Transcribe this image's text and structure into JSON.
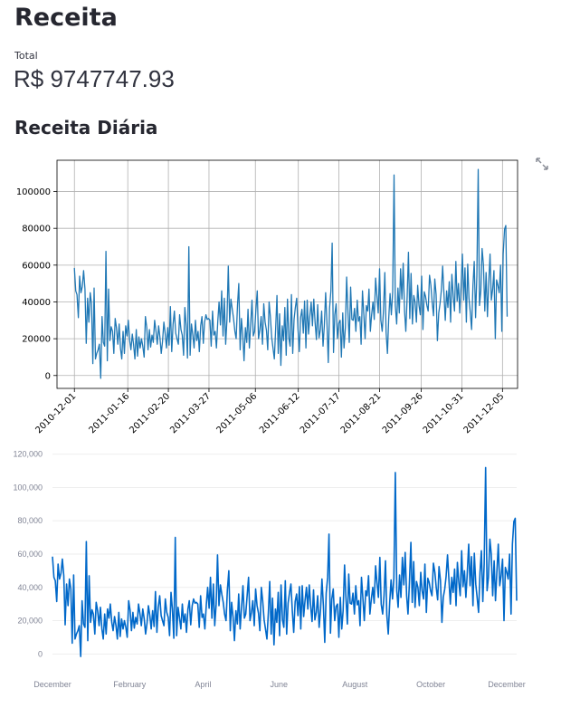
{
  "page": {
    "title": "Receita",
    "metric_label": "Total",
    "metric_value": "R$ 9747747.93",
    "section_title": "Receita Diária",
    "fullscreen_icon": "expand-arrows-icon"
  },
  "colors": {
    "mpl_line": "#1f77b4",
    "plotly_line": "#0068c9",
    "grid": "#b0b0b0",
    "plotly_grid": "#eeeeee"
  },
  "chart_data": [
    {
      "type": "line",
      "title": "",
      "xlabel": "",
      "ylabel": "",
      "x_tick_labels": [
        "2010-12-01",
        "2011-01-16",
        "2011-02-20",
        "2011-03-27",
        "2011-05-06",
        "2011-06-12",
        "2011-07-17",
        "2011-08-21",
        "2011-09-26",
        "2011-10-31",
        "2011-12-05"
      ],
      "y_ticks": [
        0,
        20000,
        40000,
        60000,
        80000,
        100000
      ],
      "y_tick_labels": [
        "0",
        "20000",
        "40000",
        "60000",
        "80000",
        "100000"
      ],
      "ylim": [
        -7000,
        117000
      ],
      "grid": true,
      "x_start": "2010-12-01",
      "x_end": "2011-12-09",
      "series": [
        {
          "values": [
            58500,
            46000,
            44000,
            31500,
            54000,
            45000,
            48500,
            57000,
            47000,
            17500,
            42000,
            29000,
            45000,
            39000,
            6500,
            47500,
            9000,
            12000,
            14000,
            17000,
            -1500,
            32000,
            18000,
            16000,
            67500,
            8000,
            47000,
            19000,
            26500,
            24000,
            12000,
            31000,
            26000,
            17000,
            28000,
            15000,
            9000,
            24000,
            12000,
            27000,
            21500,
            30000,
            19000,
            14000,
            22500,
            17000,
            9000,
            25000,
            10500,
            21000,
            15000,
            20000,
            16000,
            10000,
            32000,
            26000,
            14000,
            25000,
            15500,
            22000,
            18000,
            30000,
            24000,
            17000,
            27000,
            21000,
            12000,
            18500,
            29000,
            23000,
            15000,
            26000,
            16500,
            37500,
            13000,
            28000,
            35000,
            23000,
            20000,
            17000,
            33000,
            25000,
            22000,
            11000,
            37000,
            27000,
            9500,
            70000,
            11000,
            28000,
            22000,
            15000,
            30000,
            19000,
            24000,
            13000,
            27000,
            32000,
            17500,
            29000,
            33000,
            30500,
            31000,
            30000,
            16000,
            35000,
            22000,
            24000,
            15000,
            29500,
            40000,
            27500,
            46000,
            21500,
            42000,
            17000,
            30000,
            59500,
            29000,
            41500,
            36000,
            31000,
            24000,
            20000,
            38500,
            50000,
            14000,
            31000,
            22000,
            8000,
            26000,
            18000,
            36000,
            15000,
            27500,
            41000,
            21500,
            24000,
            35500,
            46000,
            20000,
            25000,
            32000,
            17000,
            39000,
            29000,
            24500,
            14000,
            40000,
            32000,
            20500,
            15000,
            9000,
            25000,
            43500,
            12000,
            33500,
            5500,
            27000,
            19000,
            37000,
            11000,
            41500,
            20500,
            16000,
            44000,
            12000,
            30500,
            37000,
            42000,
            25500,
            13000,
            31500,
            36000,
            23000,
            40500,
            15000,
            41000,
            22500,
            32000,
            40000,
            27000,
            41500,
            29000,
            19500,
            38500,
            20500,
            25000,
            35000,
            16000,
            27000,
            45000,
            29000,
            7000,
            36500,
            46000,
            72000,
            12500,
            33000,
            39000,
            20000,
            28500,
            30000,
            10000,
            34000,
            15000,
            26000,
            53500,
            34000,
            18000,
            48000,
            30500,
            30000,
            36500,
            24000,
            41000,
            29500,
            32000,
            17000,
            46000,
            34000,
            20000,
            38000,
            35000,
            47000,
            24000,
            33000,
            40000,
            30500,
            53000,
            43000,
            34000,
            58000,
            30000,
            24000,
            35000,
            56000,
            23500,
            12000,
            31000,
            44500,
            33000,
            45500,
            109000,
            38000,
            28000,
            47500,
            34000,
            58000,
            41500,
            61000,
            35000,
            24000,
            43000,
            67000,
            31000,
            55500,
            28000,
            43500,
            40000,
            29000,
            49000,
            38000,
            33000,
            54000,
            25000,
            45500,
            43000,
            38000,
            35000,
            54500,
            49000,
            40000,
            32500,
            52500,
            44000,
            19000,
            34000,
            39000,
            46500,
            59500,
            44000,
            30000,
            46000,
            37000,
            51000,
            29000,
            55000,
            43000,
            35000,
            62000,
            40500,
            50000,
            34000,
            48500,
            66000,
            41000,
            58500,
            29000,
            60500,
            42000,
            34000,
            25000,
            49000,
            62000,
            31500,
            54000,
            112000,
            38000,
            46000,
            69000,
            60000,
            35000,
            56000,
            32000,
            50000,
            66000,
            41000,
            47000,
            57000,
            20000,
            52000,
            49000,
            45000,
            60000,
            24000,
            66000,
            79500,
            81500,
            32000
          ]
        }
      ]
    },
    {
      "type": "line",
      "title": "",
      "xlabel": "",
      "ylabel": "",
      "x_tick_labels": [
        "December",
        "February",
        "April",
        "June",
        "August",
        "October",
        "December"
      ],
      "y_ticks": [
        0,
        20000,
        40000,
        60000,
        80000,
        100000,
        120000
      ],
      "y_tick_labels": [
        "0",
        "20,000",
        "40,000",
        "60,000",
        "80,000",
        "100,000",
        "120,000"
      ],
      "ylim": [
        -2000,
        122000
      ],
      "grid": true,
      "x_start": "2010-12-01",
      "x_end": "2011-12-09",
      "series": [
        {
          "values": [
            58500,
            46000,
            44000,
            31500,
            54000,
            45000,
            48500,
            57000,
            47000,
            17500,
            42000,
            29000,
            45000,
            39000,
            6500,
            47500,
            9000,
            12000,
            14000,
            17000,
            -1500,
            32000,
            18000,
            16000,
            67500,
            8000,
            47000,
            19000,
            26500,
            24000,
            12000,
            31000,
            26000,
            17000,
            28000,
            15000,
            9000,
            24000,
            12000,
            27000,
            21500,
            30000,
            19000,
            14000,
            22500,
            17000,
            9000,
            25000,
            10500,
            21000,
            15000,
            20000,
            16000,
            10000,
            32000,
            26000,
            14000,
            25000,
            15500,
            22000,
            18000,
            30000,
            24000,
            17000,
            27000,
            21000,
            12000,
            18500,
            29000,
            23000,
            15000,
            26000,
            16500,
            37500,
            13000,
            28000,
            35000,
            23000,
            20000,
            17000,
            33000,
            25000,
            22000,
            11000,
            37000,
            27000,
            9500,
            70000,
            11000,
            28000,
            22000,
            15000,
            30000,
            19000,
            24000,
            13000,
            27000,
            32000,
            17500,
            29000,
            33000,
            30500,
            31000,
            30000,
            16000,
            35000,
            22000,
            24000,
            15000,
            29500,
            40000,
            27500,
            46000,
            21500,
            42000,
            17000,
            30000,
            59500,
            29000,
            41500,
            36000,
            31000,
            24000,
            20000,
            38500,
            50000,
            14000,
            31000,
            22000,
            8000,
            26000,
            18000,
            36000,
            15000,
            27500,
            41000,
            21500,
            24000,
            35500,
            46000,
            20000,
            25000,
            32000,
            17000,
            39000,
            29000,
            24500,
            14000,
            40000,
            32000,
            20500,
            15000,
            9000,
            25000,
            43500,
            12000,
            33500,
            5500,
            27000,
            19000,
            37000,
            11000,
            41500,
            20500,
            16000,
            44000,
            12000,
            30500,
            37000,
            42000,
            25500,
            13000,
            31500,
            36000,
            23000,
            40500,
            15000,
            41000,
            22500,
            32000,
            40000,
            27000,
            41500,
            29000,
            19500,
            38500,
            20500,
            25000,
            35000,
            16000,
            27000,
            45000,
            29000,
            7000,
            36500,
            46000,
            72000,
            12500,
            33000,
            39000,
            20000,
            28500,
            30000,
            10000,
            34000,
            15000,
            26000,
            53500,
            34000,
            18000,
            48000,
            30500,
            30000,
            36500,
            24000,
            41000,
            29500,
            32000,
            17000,
            46000,
            34000,
            20000,
            38000,
            35000,
            47000,
            24000,
            33000,
            40000,
            30500,
            53000,
            43000,
            34000,
            58000,
            30000,
            24000,
            35000,
            56000,
            23500,
            12000,
            31000,
            44500,
            33000,
            45500,
            109000,
            38000,
            28000,
            47500,
            34000,
            58000,
            41500,
            61000,
            35000,
            24000,
            43000,
            67000,
            31000,
            55500,
            28000,
            43500,
            40000,
            29000,
            49000,
            38000,
            33000,
            54000,
            25000,
            45500,
            43000,
            38000,
            35000,
            54500,
            49000,
            40000,
            32500,
            52500,
            44000,
            19000,
            34000,
            39000,
            46500,
            59500,
            44000,
            30000,
            46000,
            37000,
            51000,
            29000,
            55000,
            43000,
            35000,
            62000,
            40500,
            50000,
            34000,
            48500,
            66000,
            41000,
            58500,
            29000,
            60500,
            42000,
            34000,
            25000,
            49000,
            62000,
            31500,
            54000,
            112000,
            38000,
            46000,
            69000,
            60000,
            35000,
            56000,
            32000,
            50000,
            66000,
            41000,
            47000,
            57000,
            20000,
            52000,
            49000,
            45000,
            60000,
            24000,
            66000,
            79500,
            81500,
            32000
          ]
        }
      ]
    }
  ]
}
